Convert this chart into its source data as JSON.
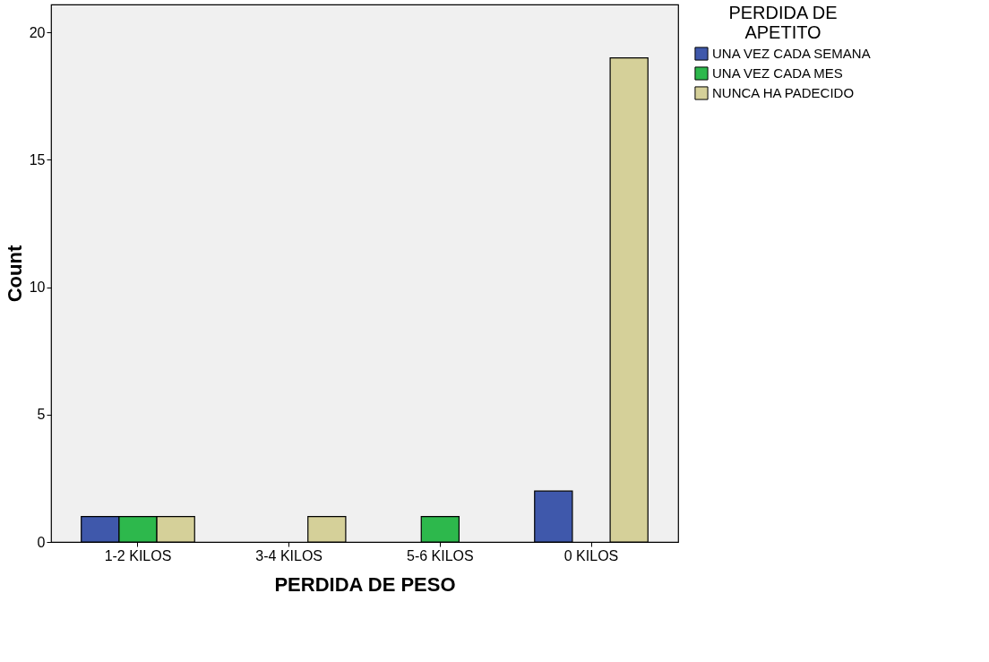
{
  "chart_data": {
    "type": "bar",
    "xlabel": "PERDIDA DE PESO",
    "ylabel": "Count",
    "legend_title": "PERDIDA DE APETITO",
    "categories": [
      "1-2 KILOS",
      "3-4 KILOS",
      "5-6 KILOS",
      "0 KILOS"
    ],
    "series": [
      {
        "name": "UNA VEZ CADA SEMANA",
        "color": "#3f58ab",
        "values": [
          1,
          null,
          null,
          2
        ]
      },
      {
        "name": "UNA VEZ CADA MES",
        "color": "#2db84c",
        "values": [
          1,
          null,
          1,
          null
        ]
      },
      {
        "name": "NUNCA HA PADECIDO",
        "color": "#d5d099",
        "values": [
          1,
          1,
          null,
          19
        ]
      }
    ],
    "ylim": [
      0,
      21.1
    ],
    "yticks": [
      0,
      5,
      10,
      15,
      20
    ],
    "grid": false,
    "legend": "right"
  }
}
